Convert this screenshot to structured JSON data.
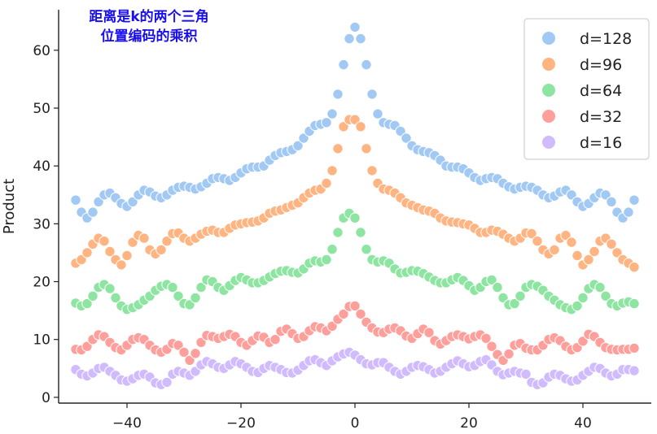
{
  "chart_data": {
    "type": "scatter",
    "title": [
      "距离是k的两个三角",
      "位置编码的乘积"
    ],
    "xlabel": "",
    "ylabel": "Product",
    "xlim": [
      -52,
      52
    ],
    "ylim": [
      -1,
      67
    ],
    "xticks": [
      -40,
      -20,
      0,
      20,
      40
    ],
    "xtick_labels": [
      "−40",
      "−20",
      "0",
      "20",
      "40"
    ],
    "yticks": [
      0,
      10,
      20,
      30,
      40,
      50,
      60
    ],
    "ytick_labels": [
      "0",
      "10",
      "20",
      "30",
      "40",
      "50",
      "60"
    ],
    "grid": false,
    "legend_position": "top-right",
    "x": [
      -49,
      -48,
      -47,
      -46,
      -45,
      -44,
      -43,
      -42,
      -41,
      -40,
      -39,
      -38,
      -37,
      -36,
      -35,
      -34,
      -33,
      -32,
      -31,
      -30,
      -29,
      -28,
      -27,
      -26,
      -25,
      -24,
      -23,
      -22,
      -21,
      -20,
      -19,
      -18,
      -17,
      -16,
      -15,
      -14,
      -13,
      -12,
      -11,
      -10,
      -9,
      -8,
      -7,
      -6,
      -5,
      -4,
      -3,
      -2,
      -1,
      0,
      1,
      2,
      3,
      4,
      5,
      6,
      7,
      8,
      9,
      10,
      11,
      12,
      13,
      14,
      15,
      16,
      17,
      18,
      19,
      20,
      21,
      22,
      23,
      24,
      25,
      26,
      27,
      28,
      29,
      30,
      31,
      32,
      33,
      34,
      35,
      36,
      37,
      38,
      39,
      40,
      41,
      42,
      43,
      44,
      45,
      46,
      47,
      48,
      49
    ],
    "series": [
      {
        "name": "d=128",
        "color": "#a1c9f4",
        "values": [
          34.1,
          32,
          31,
          32,
          33.8,
          35,
          35.3,
          34.5,
          33.5,
          33,
          33.8,
          35,
          35.8,
          35.5,
          34.8,
          34.5,
          35,
          35.8,
          36.3,
          36.5,
          36.3,
          36,
          36.4,
          37,
          37.8,
          38,
          37.8,
          37.5,
          38,
          38.8,
          39.5,
          39.8,
          39.8,
          40,
          41,
          41.8,
          42.3,
          42.5,
          42.8,
          43.5,
          44.8,
          46,
          47,
          47.2,
          47.5,
          49,
          52.4,
          57.5,
          62,
          64,
          62,
          57.5,
          52.4,
          49,
          47.5,
          47.2,
          47,
          46,
          44.8,
          43.5,
          42.8,
          42.5,
          42.3,
          41.8,
          41,
          40,
          39.8,
          39.8,
          39.5,
          38.8,
          38,
          37.5,
          37.8,
          38,
          37.8,
          37,
          36.4,
          36,
          36.3,
          36.5,
          36.3,
          35.8,
          35,
          34.5,
          34.8,
          35.5,
          35.8,
          35,
          33.8,
          33,
          33.5,
          34.5,
          35.3,
          35,
          33.8,
          32,
          31,
          32,
          34.1
        ]
      },
      {
        "name": "d=96",
        "color": "#ffb482",
        "values": [
          23.2,
          23.8,
          25,
          26.5,
          27.5,
          27,
          25.2,
          23.8,
          22.9,
          24.5,
          26.8,
          28,
          27.5,
          25.5,
          24.8,
          25.5,
          27,
          28.3,
          28.4,
          27.5,
          27,
          27.5,
          28.2,
          28.7,
          28.9,
          28.5,
          28.5,
          29.2,
          29.8,
          30,
          30.2,
          30.3,
          30.5,
          31,
          31.8,
          32.2,
          32.4,
          32.8,
          33.2,
          33.6,
          34.5,
          35.3,
          35.8,
          36,
          37,
          39.2,
          43,
          46.8,
          48,
          48,
          46.8,
          43,
          39.2,
          37,
          36,
          35.8,
          35.3,
          34.5,
          33.6,
          33.2,
          32.8,
          32.4,
          32.2,
          31.8,
          31,
          30.5,
          30.3,
          30.2,
          30,
          29.8,
          29.2,
          28.5,
          28.5,
          28.9,
          28.7,
          28.2,
          27.5,
          27,
          27.5,
          28.4,
          28.3,
          27,
          25.5,
          24.8,
          25.5,
          27.5,
          28,
          26.8,
          24.5,
          22.9,
          23.8,
          25.2,
          27,
          27.5,
          26.5,
          25,
          23.8,
          23.2,
          22.5
        ]
      },
      {
        "name": "d=64",
        "color": "#8de5a1",
        "values": [
          16.3,
          15.8,
          16.2,
          17.5,
          19,
          19.5,
          18.8,
          17.2,
          15.8,
          15.2,
          15.5,
          16,
          16.8,
          17.5,
          18.5,
          19.2,
          19.5,
          19,
          17.5,
          16.2,
          16,
          17.2,
          19,
          20.3,
          20,
          19,
          18.5,
          19.3,
          20.2,
          20.7,
          20.3,
          19.8,
          19.8,
          20.2,
          20.8,
          21.4,
          21.8,
          21.9,
          21.6,
          21.5,
          22.2,
          23.2,
          23.6,
          23.4,
          23.8,
          25.6,
          28.5,
          31,
          31.8,
          31,
          28.5,
          25.6,
          23.8,
          23.4,
          23.6,
          23.2,
          22.2,
          21.5,
          21.6,
          21.9,
          21.8,
          21.4,
          20.8,
          20.2,
          19.8,
          19.8,
          20.3,
          20.7,
          20.2,
          19.3,
          18.5,
          19,
          20,
          20.3,
          19,
          17.2,
          16,
          16.2,
          17.5,
          19,
          19.5,
          19.2,
          18.5,
          17.5,
          16.8,
          16,
          15.5,
          15.2,
          15.8,
          17.2,
          18.8,
          19.5,
          19,
          17.5,
          16.2,
          15.8,
          16.3,
          16.5,
          16.2
        ]
      },
      {
        "name": "d=32",
        "color": "#ff9f9b",
        "values": [
          8.3,
          8.2,
          8.8,
          10,
          10.8,
          10.5,
          9.5,
          8.6,
          8.2,
          9,
          10,
          10.3,
          10,
          9,
          8.2,
          7.8,
          8.3,
          9.3,
          9,
          7.8,
          6.4,
          7.6,
          9.5,
          10.7,
          10.5,
          10.2,
          10.5,
          10.9,
          10.5,
          9.5,
          9,
          9.8,
          10.6,
          10.4,
          9.5,
          10,
          11.4,
          11.8,
          11,
          10.2,
          10.5,
          11.5,
          12.2,
          12,
          11.5,
          12.3,
          13.5,
          14.4,
          15.7,
          15.8,
          14.4,
          13,
          12,
          11.3,
          11.2,
          11.8,
          12,
          11.5,
          10.6,
          10.2,
          11,
          11.8,
          11.2,
          9.8,
          9.2,
          9.8,
          10.5,
          10.8,
          10.5,
          10.1,
          10.5,
          10.8,
          10.2,
          8.8,
          7.4,
          6.4,
          7.5,
          9,
          9.3,
          8.5,
          8.2,
          8.2,
          9,
          10,
          10.3,
          9.8,
          8.8,
          8.2,
          8.6,
          9.7,
          10.9,
          10.5,
          9.5,
          8.6,
          8.3,
          8.2,
          8.3,
          8.3,
          8.5
        ]
      },
      {
        "name": "d=16",
        "color": "#d0bbff",
        "values": [
          4.8,
          4,
          3.7,
          4.2,
          5,
          5.2,
          4.5,
          3.8,
          3,
          2.8,
          3.2,
          3.8,
          4,
          3.5,
          2.5,
          2.2,
          2.6,
          4,
          4.5,
          4.2,
          3.8,
          4.5,
          5.6,
          6.2,
          5.8,
          5.2,
          5,
          5.6,
          6.2,
          5.8,
          5.2,
          4.5,
          4.3,
          5,
          5.5,
          5.2,
          4.8,
          4.3,
          4.2,
          4.7,
          5.5,
          6.3,
          6.5,
          6,
          5.5,
          6.3,
          7,
          7.5,
          7.8,
          7.3,
          6.5,
          5.8,
          5.6,
          6,
          6,
          5.2,
          4.5,
          4,
          4.5,
          5.2,
          5.5,
          5.3,
          4.8,
          4.2,
          4.5,
          5.2,
          5.8,
          6.3,
          5.8,
          5.3,
          5.5,
          6.2,
          6.5,
          5.6,
          4.5,
          3.9,
          4.2,
          4.5,
          4.2,
          4,
          2.6,
          2.2,
          2.5,
          3.5,
          4,
          3.8,
          3.2,
          2.8,
          3,
          3.8,
          4.5,
          5.2,
          5,
          4.2,
          3.7,
          4,
          4.8,
          4.8,
          4.6
        ]
      }
    ]
  }
}
